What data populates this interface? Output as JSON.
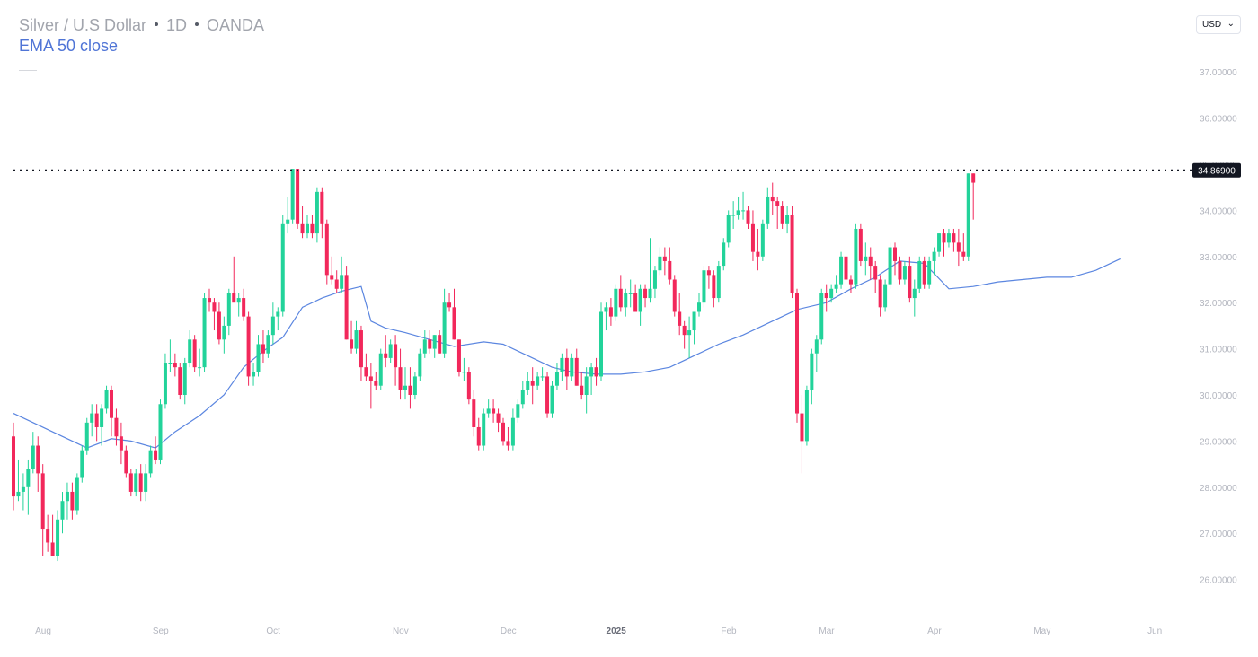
{
  "header": {
    "symbol": "Silver / U.S Dollar",
    "interval": "1D",
    "source": "OANDA",
    "indicator": "EMA 50 close"
  },
  "currency_selector": {
    "value": "USD"
  },
  "colors": {
    "up": "#22d39a",
    "down": "#f2285b",
    "ema": "#5b86e0",
    "grid_text": "#b3b6bf",
    "last_price_bg": "#131722"
  },
  "chart_data": {
    "type": "candlestick",
    "y_axis": {
      "range": [
        25.3,
        37.3
      ],
      "ticks": [
        "26.00000",
        "27.00000",
        "28.00000",
        "29.00000",
        "30.00000",
        "31.00000",
        "32.00000",
        "33.00000",
        "34.00000",
        "35.00000",
        "36.00000",
        "37.00000"
      ]
    },
    "x_axis": {
      "labels": [
        {
          "label": "Aug",
          "t": 0
        },
        {
          "label": "Sep",
          "t": 24
        },
        {
          "label": "Oct",
          "t": 47
        },
        {
          "label": "Nov",
          "t": 73
        },
        {
          "label": "Dec",
          "t": 95
        },
        {
          "label": "2025",
          "t": 117
        },
        {
          "label": "Feb",
          "t": 140
        },
        {
          "label": "Mar",
          "t": 160
        },
        {
          "label": "Apr",
          "t": 182
        },
        {
          "label": "May",
          "t": 204
        },
        {
          "label": "Jun",
          "t": 227
        }
      ]
    },
    "last_price": {
      "value": 34.869,
      "label": "34.86900"
    },
    "candles": [
      [
        29.1,
        29.4,
        27.5,
        27.8
      ],
      [
        27.8,
        28.6,
        27.7,
        27.9
      ],
      [
        27.9,
        28.3,
        27.5,
        28.0
      ],
      [
        28.0,
        28.6,
        27.4,
        28.4
      ],
      [
        28.4,
        29.2,
        28.3,
        28.9
      ],
      [
        28.9,
        29.1,
        27.9,
        28.3
      ],
      [
        28.3,
        28.5,
        26.5,
        27.1
      ],
      [
        27.1,
        27.4,
        26.6,
        26.8
      ],
      [
        26.8,
        27.4,
        26.5,
        26.5
      ],
      [
        26.5,
        27.5,
        26.4,
        27.3
      ],
      [
        27.3,
        27.9,
        27.0,
        27.7
      ],
      [
        27.7,
        28.1,
        27.3,
        27.9
      ],
      [
        27.9,
        28.1,
        27.3,
        27.5
      ],
      [
        27.5,
        28.3,
        27.4,
        28.2
      ],
      [
        28.2,
        28.9,
        28.1,
        28.8
      ],
      [
        28.8,
        29.5,
        28.7,
        29.4
      ],
      [
        29.4,
        29.8,
        29.1,
        29.6
      ],
      [
        29.6,
        29.8,
        29.0,
        29.3
      ],
      [
        29.3,
        29.8,
        28.9,
        29.7
      ],
      [
        29.7,
        30.2,
        29.6,
        30.1
      ],
      [
        30.1,
        30.2,
        29.1,
        29.5
      ],
      [
        29.5,
        29.7,
        28.9,
        29.1
      ],
      [
        29.1,
        29.4,
        28.5,
        28.8
      ],
      [
        28.8,
        28.9,
        28.2,
        28.3
      ],
      [
        28.3,
        28.4,
        27.8,
        27.9
      ],
      [
        27.9,
        28.4,
        27.8,
        28.3
      ],
      [
        28.3,
        28.5,
        27.7,
        27.9
      ],
      [
        27.9,
        28.5,
        27.7,
        28.3
      ],
      [
        28.3,
        28.9,
        28.2,
        28.8
      ],
      [
        28.8,
        29.1,
        28.5,
        28.6
      ],
      [
        28.6,
        29.9,
        28.5,
        29.8
      ],
      [
        29.8,
        30.9,
        29.7,
        30.7
      ],
      [
        30.7,
        31.2,
        30.5,
        30.7
      ],
      [
        30.7,
        30.9,
        30.4,
        30.6
      ],
      [
        30.6,
        30.7,
        29.9,
        30.0
      ],
      [
        30.0,
        30.8,
        29.8,
        30.7
      ],
      [
        30.7,
        31.4,
        30.6,
        31.2
      ],
      [
        31.2,
        31.3,
        30.5,
        30.6
      ],
      [
        30.6,
        31.0,
        30.4,
        30.6
      ],
      [
        30.6,
        32.2,
        30.5,
        32.1
      ],
      [
        32.1,
        32.3,
        31.8,
        32.0
      ],
      [
        32.0,
        32.1,
        31.4,
        31.8
      ],
      [
        31.8,
        32.0,
        31.1,
        31.2
      ],
      [
        31.2,
        31.7,
        30.9,
        31.5
      ],
      [
        31.5,
        32.3,
        31.3,
        32.2
      ],
      [
        32.2,
        33.0,
        32.1,
        32.0
      ],
      [
        32.0,
        32.2,
        31.7,
        32.1
      ],
      [
        32.1,
        32.3,
        31.6,
        31.7
      ],
      [
        31.7,
        31.8,
        30.2,
        30.4
      ],
      [
        30.4,
        30.7,
        30.2,
        30.5
      ],
      [
        30.5,
        31.3,
        30.4,
        31.1
      ],
      [
        31.1,
        31.4,
        30.7,
        30.9
      ],
      [
        30.9,
        31.4,
        30.8,
        31.3
      ],
      [
        31.3,
        32.0,
        31.1,
        31.7
      ],
      [
        31.7,
        31.9,
        31.4,
        31.8
      ],
      [
        31.8,
        33.9,
        31.7,
        33.7
      ],
      [
        33.7,
        34.3,
        33.5,
        33.8
      ],
      [
        33.8,
        34.9,
        33.7,
        34.9
      ],
      [
        34.9,
        34.9,
        33.6,
        33.7
      ],
      [
        33.7,
        34.1,
        33.4,
        33.5
      ],
      [
        33.5,
        33.9,
        33.4,
        33.7
      ],
      [
        33.7,
        33.9,
        33.4,
        33.5
      ],
      [
        33.5,
        34.5,
        33.3,
        34.4
      ],
      [
        34.4,
        34.5,
        33.4,
        33.7
      ],
      [
        33.7,
        33.8,
        32.4,
        32.6
      ],
      [
        32.6,
        33.0,
        32.4,
        32.5
      ],
      [
        32.5,
        32.7,
        32.2,
        32.3
      ],
      [
        32.3,
        33.0,
        32.2,
        32.6
      ],
      [
        32.6,
        32.8,
        31.2,
        31.2
      ],
      [
        31.2,
        31.6,
        30.9,
        31.0
      ],
      [
        31.0,
        31.6,
        30.9,
        31.4
      ],
      [
        31.4,
        31.5,
        30.3,
        30.6
      ],
      [
        30.6,
        30.9,
        30.3,
        30.4
      ],
      [
        30.4,
        30.7,
        29.7,
        30.3
      ],
      [
        30.3,
        30.5,
        30.1,
        30.2
      ],
      [
        30.2,
        31.0,
        30.1,
        30.9
      ],
      [
        30.9,
        31.3,
        30.6,
        30.8
      ],
      [
        30.8,
        31.2,
        30.7,
        31.1
      ],
      [
        31.1,
        31.3,
        30.2,
        30.6
      ],
      [
        30.6,
        31.0,
        29.9,
        30.1
      ],
      [
        30.1,
        30.6,
        29.9,
        30.2
      ],
      [
        30.2,
        30.6,
        29.7,
        30.0
      ],
      [
        30.0,
        30.5,
        29.9,
        30.4
      ],
      [
        30.4,
        31.0,
        30.3,
        30.9
      ],
      [
        30.9,
        31.4,
        30.8,
        31.2
      ],
      [
        31.2,
        31.4,
        30.9,
        31.0
      ],
      [
        31.0,
        31.3,
        30.8,
        31.3
      ],
      [
        31.3,
        31.4,
        30.9,
        30.9
      ],
      [
        30.9,
        32.3,
        30.8,
        32.0
      ],
      [
        32.0,
        32.2,
        31.8,
        31.9
      ],
      [
        31.9,
        32.3,
        31.2,
        31.2
      ],
      [
        31.2,
        31.2,
        30.4,
        30.5
      ],
      [
        30.5,
        30.8,
        30.3,
        30.5
      ],
      [
        30.5,
        30.6,
        29.8,
        29.9
      ],
      [
        29.9,
        30.1,
        29.1,
        29.3
      ],
      [
        29.3,
        29.5,
        28.8,
        28.9
      ],
      [
        28.9,
        29.7,
        28.8,
        29.6
      ],
      [
        29.6,
        29.9,
        29.5,
        29.7
      ],
      [
        29.7,
        29.9,
        29.4,
        29.6
      ],
      [
        29.6,
        29.7,
        29.2,
        29.4
      ],
      [
        29.4,
        29.5,
        28.9,
        29.0
      ],
      [
        29.0,
        29.3,
        28.8,
        28.9
      ],
      [
        28.9,
        29.7,
        28.8,
        29.5
      ],
      [
        29.5,
        29.9,
        29.4,
        29.8
      ],
      [
        29.8,
        30.3,
        29.7,
        30.1
      ],
      [
        30.1,
        30.5,
        30.0,
        30.3
      ],
      [
        30.3,
        30.6,
        29.8,
        30.2
      ],
      [
        30.2,
        30.5,
        30.1,
        30.4
      ],
      [
        30.4,
        30.6,
        30.3,
        30.4
      ],
      [
        30.4,
        30.5,
        29.5,
        29.6
      ],
      [
        29.6,
        30.3,
        29.5,
        30.2
      ],
      [
        30.2,
        30.7,
        30.1,
        30.5
      ],
      [
        30.5,
        30.9,
        30.3,
        30.8
      ],
      [
        30.8,
        31.0,
        30.1,
        30.4
      ],
      [
        30.4,
        30.9,
        30.3,
        30.8
      ],
      [
        30.8,
        31.0,
        30.2,
        30.2
      ],
      [
        30.2,
        30.5,
        29.9,
        30.0
      ],
      [
        30.0,
        30.6,
        29.6,
        30.4
      ],
      [
        30.4,
        30.7,
        30.0,
        30.6
      ],
      [
        30.6,
        30.8,
        30.2,
        30.4
      ],
      [
        30.4,
        32.0,
        30.3,
        31.8
      ],
      [
        31.8,
        32.0,
        31.4,
        31.9
      ],
      [
        31.9,
        32.1,
        31.5,
        31.7
      ],
      [
        31.7,
        32.4,
        31.6,
        32.3
      ],
      [
        32.3,
        32.6,
        31.8,
        31.9
      ],
      [
        31.9,
        32.3,
        31.7,
        32.2
      ],
      [
        32.2,
        32.5,
        31.9,
        32.2
      ],
      [
        32.2,
        32.4,
        31.8,
        31.8
      ],
      [
        31.8,
        32.4,
        31.5,
        32.3
      ],
      [
        32.3,
        32.4,
        31.9,
        32.1
      ],
      [
        32.1,
        33.4,
        32.0,
        32.3
      ],
      [
        32.3,
        32.8,
        32.1,
        32.7
      ],
      [
        32.7,
        33.2,
        32.6,
        33.0
      ],
      [
        33.0,
        33.2,
        32.6,
        32.9
      ],
      [
        32.9,
        33.2,
        32.4,
        32.5
      ],
      [
        32.5,
        32.6,
        31.7,
        31.8
      ],
      [
        31.8,
        32.2,
        31.3,
        31.5
      ],
      [
        31.5,
        31.6,
        31.0,
        31.3
      ],
      [
        31.3,
        31.7,
        30.8,
        31.4
      ],
      [
        31.4,
        31.8,
        31.1,
        31.8
      ],
      [
        31.8,
        32.2,
        31.7,
        32.0
      ],
      [
        32.0,
        32.8,
        31.9,
        32.7
      ],
      [
        32.7,
        32.8,
        32.3,
        32.6
      ],
      [
        32.6,
        32.7,
        31.9,
        32.1
      ],
      [
        32.1,
        32.9,
        32.0,
        32.8
      ],
      [
        32.8,
        33.4,
        32.7,
        33.3
      ],
      [
        33.3,
        34.0,
        33.2,
        33.9
      ],
      [
        33.9,
        34.2,
        33.6,
        33.9
      ],
      [
        33.9,
        34.3,
        33.8,
        34.0
      ],
      [
        34.0,
        34.4,
        33.8,
        34.0
      ],
      [
        34.0,
        34.1,
        33.6,
        33.7
      ],
      [
        33.7,
        34.0,
        32.9,
        33.1
      ],
      [
        33.1,
        33.6,
        32.7,
        33.0
      ],
      [
        33.0,
        33.8,
        32.9,
        33.7
      ],
      [
        33.7,
        34.5,
        33.6,
        34.3
      ],
      [
        34.3,
        34.6,
        33.9,
        34.2
      ],
      [
        34.2,
        34.3,
        33.6,
        34.1
      ],
      [
        34.1,
        34.2,
        33.6,
        33.7
      ],
      [
        33.7,
        34.1,
        33.5,
        33.9
      ],
      [
        33.9,
        34.1,
        32.1,
        32.2
      ],
      [
        32.2,
        32.3,
        29.4,
        29.6
      ],
      [
        29.6,
        30.0,
        28.3,
        29.0
      ],
      [
        29.0,
        30.2,
        28.9,
        30.1
      ],
      [
        30.1,
        31.0,
        29.8,
        30.9
      ],
      [
        30.9,
        31.3,
        30.5,
        31.2
      ],
      [
        31.2,
        32.3,
        31.1,
        32.2
      ],
      [
        32.2,
        32.4,
        31.8,
        32.1
      ],
      [
        32.1,
        32.4,
        32.0,
        32.3
      ],
      [
        32.3,
        32.6,
        32.2,
        32.4
      ],
      [
        32.4,
        33.1,
        32.3,
        33.0
      ],
      [
        33.0,
        33.2,
        32.5,
        32.5
      ],
      [
        32.5,
        32.6,
        32.2,
        32.4
      ],
      [
        32.4,
        33.7,
        32.3,
        33.6
      ],
      [
        33.6,
        33.7,
        32.8,
        32.9
      ],
      [
        32.9,
        33.3,
        32.6,
        33.0
      ],
      [
        33.0,
        33.2,
        32.5,
        32.8
      ],
      [
        32.8,
        32.9,
        32.2,
        32.5
      ],
      [
        32.5,
        32.6,
        31.7,
        31.9
      ],
      [
        31.9,
        32.5,
        31.8,
        32.4
      ],
      [
        32.4,
        33.3,
        32.3,
        33.2
      ],
      [
        33.2,
        33.3,
        32.6,
        32.9
      ],
      [
        32.9,
        33.0,
        32.4,
        32.5
      ],
      [
        32.5,
        32.9,
        32.4,
        32.8
      ],
      [
        32.8,
        33.0,
        32.0,
        32.1
      ],
      [
        32.1,
        32.5,
        31.7,
        32.3
      ],
      [
        32.3,
        33.0,
        32.2,
        32.9
      ],
      [
        32.9,
        33.0,
        32.3,
        32.4
      ],
      [
        32.4,
        33.0,
        32.3,
        32.9
      ],
      [
        32.9,
        33.2,
        32.6,
        33.1
      ],
      [
        33.1,
        33.5,
        33.0,
        33.5
      ],
      [
        33.5,
        33.6,
        33.0,
        33.3
      ],
      [
        33.3,
        33.6,
        33.2,
        33.5
      ],
      [
        33.5,
        33.6,
        33.1,
        33.3
      ],
      [
        33.3,
        33.6,
        32.8,
        33.1
      ],
      [
        33.1,
        33.5,
        32.9,
        33.0
      ],
      [
        33.0,
        34.8,
        32.9,
        34.8
      ],
      [
        34.8,
        34.8,
        33.8,
        34.6
      ]
    ],
    "ema": [
      [
        0,
        29.6
      ],
      [
        5,
        29.35
      ],
      [
        10,
        29.1
      ],
      [
        15,
        28.85
      ],
      [
        20,
        29.05
      ],
      [
        24,
        29.0
      ],
      [
        29,
        28.85
      ],
      [
        33,
        29.2
      ],
      [
        38,
        29.55
      ],
      [
        43,
        30.0
      ],
      [
        47,
        30.6
      ],
      [
        51,
        30.95
      ],
      [
        55,
        31.25
      ],
      [
        59,
        31.9
      ],
      [
        63,
        32.1
      ],
      [
        67,
        32.25
      ],
      [
        71,
        32.35
      ],
      [
        73,
        31.6
      ],
      [
        76,
        31.45
      ],
      [
        80,
        31.35
      ],
      [
        85,
        31.2
      ],
      [
        90,
        31.05
      ],
      [
        96,
        31.15
      ],
      [
        100,
        31.1
      ],
      [
        105,
        30.85
      ],
      [
        110,
        30.6
      ],
      [
        114,
        30.5
      ],
      [
        119,
        30.45
      ],
      [
        124,
        30.45
      ],
      [
        129,
        30.5
      ],
      [
        134,
        30.6
      ],
      [
        139,
        30.85
      ],
      [
        144,
        31.1
      ],
      [
        149,
        31.3
      ],
      [
        154,
        31.55
      ],
      [
        160,
        31.85
      ],
      [
        166,
        32.0
      ],
      [
        171,
        32.3
      ],
      [
        176,
        32.55
      ],
      [
        181,
        32.9
      ],
      [
        186,
        32.85
      ],
      [
        191,
        32.3
      ],
      [
        196,
        32.35
      ],
      [
        201,
        32.45
      ],
      [
        206,
        32.5
      ],
      [
        211,
        32.55
      ],
      [
        216,
        32.55
      ],
      [
        221,
        32.7
      ],
      [
        226,
        32.95
      ]
    ]
  }
}
